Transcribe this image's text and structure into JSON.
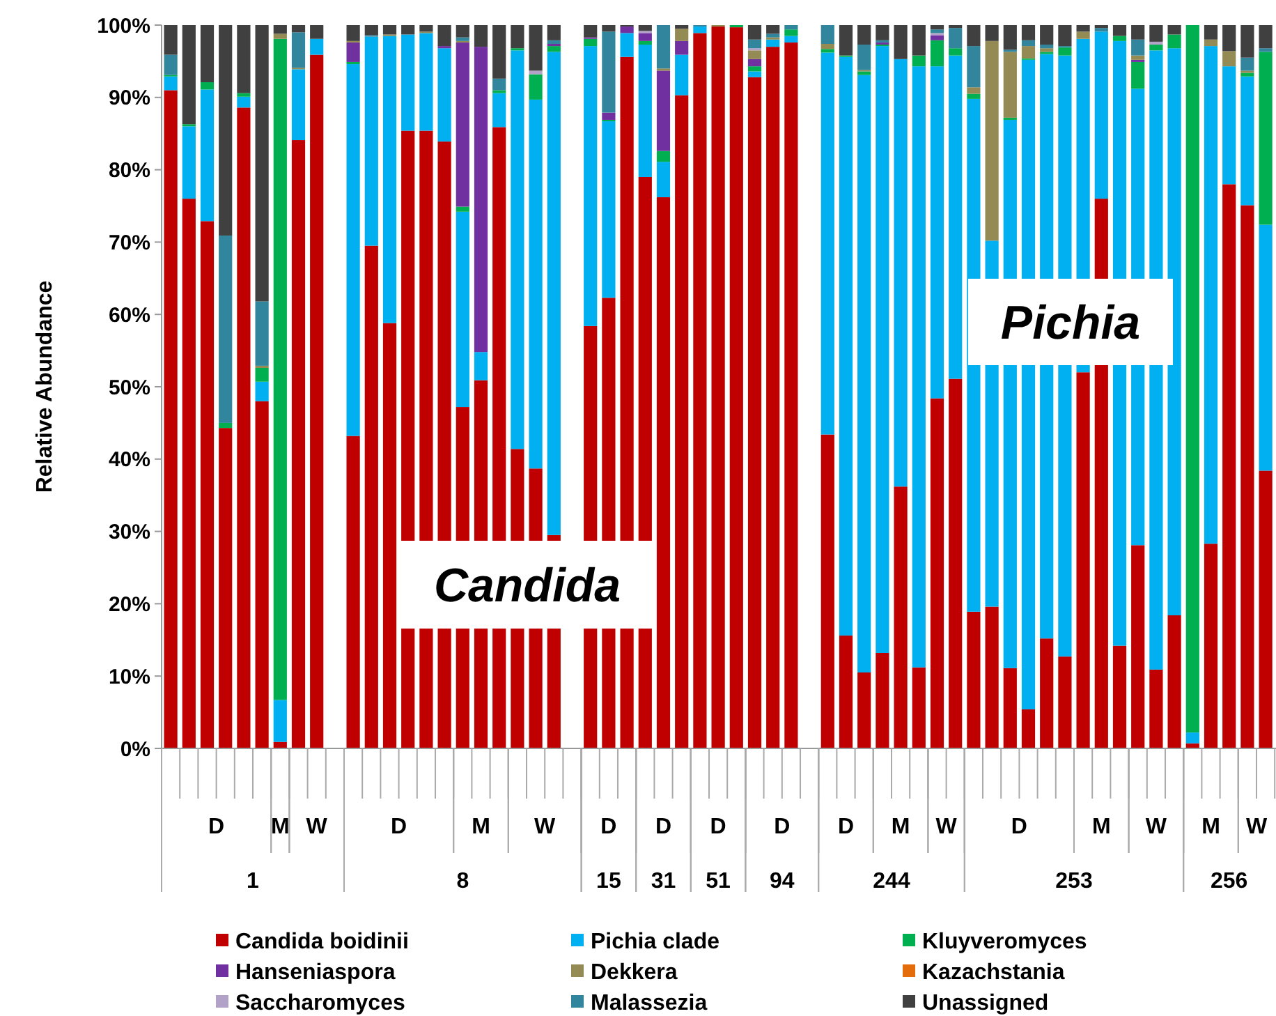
{
  "chart_data": {
    "type": "bar",
    "stacked": true,
    "ylabel": "Relative Abundance",
    "legend": "bottom",
    "ylim": [
      0,
      100
    ],
    "yticks": [
      {
        "value": 0,
        "label": "0%"
      },
      {
        "value": 10,
        "label": "10%"
      },
      {
        "value": 20,
        "label": "20%"
      },
      {
        "value": 30,
        "label": "30%"
      },
      {
        "value": 40,
        "label": "40%"
      },
      {
        "value": 50,
        "label": "50%"
      },
      {
        "value": 60,
        "label": "60%"
      },
      {
        "value": 70,
        "label": "70%"
      },
      {
        "value": 80,
        "label": "80%"
      },
      {
        "value": 90,
        "label": "90%"
      },
      {
        "value": 100,
        "label": "100%"
      }
    ],
    "categories": [
      null,
      null,
      null,
      null,
      null,
      null,
      null,
      null,
      null,
      null,
      null,
      null,
      null,
      null,
      null,
      null,
      null,
      null,
      null,
      null,
      null,
      null,
      null,
      null,
      null,
      null,
      null,
      null,
      null,
      null,
      null,
      null,
      null,
      null,
      null,
      null,
      null,
      null,
      null,
      null,
      null,
      null,
      null,
      null,
      null,
      null,
      null,
      null,
      null,
      null,
      null,
      null,
      null,
      null,
      null,
      null,
      null,
      null,
      null,
      null,
      null
    ],
    "annotations": [
      "Candida",
      "Pichia",
      "D",
      "M",
      "W",
      "D",
      "M",
      "W",
      "D",
      "D",
      "D",
      "D",
      "D",
      "M",
      "W",
      "D",
      "M",
      "W",
      "M",
      "W",
      "1",
      "8",
      "15",
      "31",
      "51",
      "94",
      "244",
      "253",
      "256"
    ],
    "series": [
      {
        "name": "Candida boidinii",
        "color": "#c00000",
        "values": [
          91.0,
          76.0,
          72.9,
          44.3,
          88.6,
          48.0,
          0.9,
          84.1,
          95.9,
          null,
          43.2,
          69.5,
          58.8,
          85.4,
          85.4,
          83.9,
          47.2,
          50.9,
          85.9,
          41.4,
          38.7,
          29.5,
          null,
          58.4,
          62.3,
          95.6,
          79.0,
          76.2,
          90.3,
          98.9,
          99.8,
          99.7,
          92.8,
          97.0,
          97.6,
          null,
          43.4,
          15.6,
          10.5,
          13.2,
          36.2,
          11.2,
          48.4,
          51.1,
          18.9,
          19.6,
          11.1,
          5.4,
          15.2,
          12.7,
          52,
          76.0,
          14.2,
          28.1,
          10.9,
          18.4,
          0.7,
          28.3,
          78.0,
          75.1,
          38.4
        ]
      },
      {
        "name": "Pichia clade",
        "color": "#00b0f0",
        "values": [
          1.9,
          10.0,
          18.2,
          0,
          1.5,
          2.7,
          5.8,
          9.8,
          2.2,
          null,
          51.4,
          28.9,
          39.7,
          13.3,
          13.5,
          12.9,
          27.0,
          3.9,
          4.7,
          55.1,
          51.0,
          66.8,
          null,
          38.7,
          24.4,
          3.3,
          18.3,
          4.9,
          5.6,
          0.9,
          0,
          0,
          0.8,
          1.0,
          0.9,
          null,
          52.8,
          80.0,
          82.6,
          83.9,
          59.1,
          83.1,
          45.9,
          44.7,
          70.9,
          50.6,
          75.8,
          89.8,
          80.8,
          83.1,
          46.1,
          23.1,
          83.6,
          63.1,
          85.6,
          78.4,
          1.5,
          68.8,
          16.3,
          17.8,
          34.0
        ]
      },
      {
        "name": "Kluyveromyces",
        "color": "#00b050",
        "values": [
          0.2,
          0.3,
          1.0,
          0.7,
          0.5,
          1.9,
          91.4,
          0,
          0,
          null,
          0.3,
          0,
          0,
          0,
          0,
          0,
          0.7,
          0,
          0.4,
          0.3,
          3.5,
          0.8,
          null,
          1.0,
          0.2,
          0,
          0.5,
          1.5,
          0,
          0,
          0,
          0.3,
          0.7,
          0,
          0.9,
          null,
          0.5,
          0.2,
          0.5,
          0.2,
          0,
          1.5,
          3.6,
          1.0,
          0.7,
          0,
          0.3,
          0.2,
          0.3,
          1.1,
          0,
          0,
          0.7,
          3.7,
          0.8,
          1.9,
          97.8,
          0,
          0,
          0.5,
          23.9
        ]
      },
      {
        "name": "Hanseniaspora",
        "color": "#7030a0",
        "values": [
          0,
          0,
          0,
          0,
          0,
          0,
          0,
          0,
          0,
          null,
          2.7,
          0,
          0,
          0,
          0,
          0.3,
          22.7,
          42.2,
          0,
          0,
          0,
          0.3,
          null,
          0.2,
          1.0,
          0.9,
          1.1,
          11.1,
          1.9,
          0,
          0,
          0,
          1.0,
          0,
          0,
          null,
          0,
          0,
          0,
          0.3,
          0,
          0,
          0.7,
          0,
          0,
          0,
          0,
          0,
          0,
          0,
          0,
          0,
          0,
          0.3,
          0,
          0,
          0,
          0,
          0,
          0,
          0
        ]
      },
      {
        "name": "Dekkera",
        "color": "#948a54",
        "values": [
          0,
          0,
          0,
          0,
          0,
          0.3,
          0.7,
          0.2,
          0,
          null,
          0.2,
          0,
          0.2,
          0,
          0.2,
          0,
          0.2,
          0,
          0,
          0,
          0,
          0,
          null,
          0,
          0,
          0,
          0,
          0.3,
          1.7,
          0,
          0.2,
          0,
          1.2,
          0.3,
          0,
          null,
          0.7,
          0,
          0.2,
          0,
          0,
          0,
          0,
          0,
          0.9,
          27.6,
          9.1,
          1.7,
          0.5,
          0,
          1.0,
          0,
          0,
          0.6,
          0,
          0,
          0,
          0.9,
          2.1,
          0.3,
          0
        ]
      },
      {
        "name": "Kazachstania",
        "color": "#e46c0a",
        "values": [
          0,
          0,
          0,
          0,
          0,
          0,
          0,
          0,
          0,
          null,
          0,
          0,
          0,
          0,
          0,
          0,
          0,
          0,
          0,
          0,
          0,
          0,
          null,
          0,
          0,
          0,
          0,
          0,
          0,
          0,
          0,
          0,
          0,
          0,
          0,
          null,
          0,
          0,
          0,
          0,
          0,
          0,
          0,
          0,
          0,
          0,
          0,
          0,
          0,
          0,
          0,
          0,
          0,
          0,
          0,
          0,
          0,
          0,
          0,
          0,
          0
        ]
      },
      {
        "name": "Saccharomyces",
        "color": "#b3a2c7",
        "values": [
          0,
          0,
          0,
          0,
          0,
          0,
          0,
          0,
          0,
          null,
          0,
          0,
          0,
          0,
          0,
          0,
          0,
          0,
          0,
          0,
          0.5,
          0,
          null,
          0,
          0,
          0,
          0.3,
          0,
          0,
          0,
          0,
          0,
          0.3,
          0,
          0,
          null,
          0,
          0,
          0,
          0,
          0,
          0,
          0.3,
          0,
          0,
          0,
          0,
          0,
          0,
          0,
          0,
          0,
          0,
          0,
          0.4,
          0,
          0,
          0,
          0,
          0,
          0
        ]
      },
      {
        "name": "Malassezia",
        "color": "#31859c",
        "values": [
          2.8,
          0,
          0,
          25.9,
          0,
          8.9,
          0,
          4.9,
          0,
          null,
          0,
          0.2,
          0,
          0,
          0,
          0,
          0.5,
          0,
          1.6,
          0,
          0,
          0.5,
          null,
          0,
          11.2,
          0,
          0,
          6.0,
          0,
          0.2,
          0,
          0,
          1.2,
          0.5,
          0.6,
          null,
          2.6,
          0,
          3.5,
          0.3,
          0,
          0,
          0.5,
          2.8,
          5.7,
          0,
          0.3,
          0.8,
          0.5,
          0.2,
          0,
          0.5,
          0,
          2.2,
          0,
          0,
          0,
          0,
          0,
          1.8,
          0.5
        ]
      },
      {
        "name": "Unassigned",
        "color": "#404040",
        "values": [
          4.1,
          13.7,
          7.9,
          29.1,
          9.4,
          38.2,
          1.2,
          1.0,
          1.9,
          null,
          2.2,
          1.4,
          1.3,
          1.3,
          0.9,
          2.9,
          1.7,
          3.0,
          7.4,
          3.2,
          6.3,
          2.1,
          null,
          1.7,
          0.9,
          0.2,
          0.8,
          0,
          0.5,
          0,
          0,
          0,
          2.0,
          1.2,
          0,
          null,
          0,
          4.2,
          2.7,
          2.1,
          4.7,
          4.2,
          0.6,
          0.4,
          2.9,
          2.2,
          3.4,
          2.1,
          2.7,
          2.9,
          0.9,
          0.4,
          1.5,
          2.0,
          2.3,
          1.3,
          0,
          2.0,
          3.6,
          4.5,
          3.2
        ]
      }
    ]
  }
}
